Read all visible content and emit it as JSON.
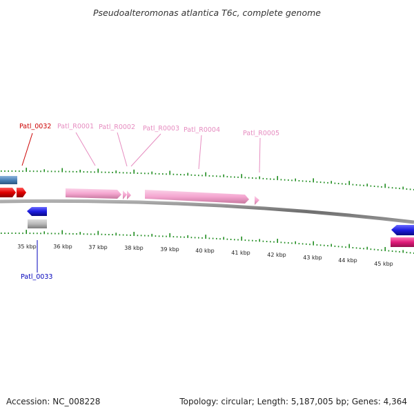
{
  "title": "Pseudoalteromonas atlantica T6c, complete genome",
  "footer": {
    "accession": "Accession: NC_008228",
    "summary": "Topology: circular; Length: 5,187,005 bp; Genes: 4,364"
  },
  "colors": {
    "backbone": "#808080",
    "tick": "#1e8c1e",
    "gene_red_label": "#cc0000",
    "gene_pink_label": "#e68cc0",
    "gene_blue_label": "#0000bb",
    "feature_red": "#e00000",
    "feature_pink": "#f4a6d0",
    "feature_steelblue": "#4a82b8",
    "feature_blue": "#1c1ce0",
    "feature_gray": "#b0b0b0",
    "feature_magenta": "#e0197a"
  },
  "axis": {
    "unit": "kbp",
    "labels": [
      "35 kbp",
      "36 kbp",
      "37 kbp",
      "38 kbp",
      "39 kbp",
      "40 kbp",
      "41 kbp",
      "42 kbp",
      "43 kbp",
      "44 kbp",
      "45 kbp"
    ]
  },
  "gene_labels": [
    {
      "name": "Patl_0032",
      "color": "red"
    },
    {
      "name": "Patl_R0001",
      "color": "pink"
    },
    {
      "name": "Patl_R0002",
      "color": "pink"
    },
    {
      "name": "Patl_R0003",
      "color": "pink"
    },
    {
      "name": "Patl_R0004",
      "color": "pink"
    },
    {
      "name": "Patl_R0005",
      "color": "pink"
    },
    {
      "name": "Patl_0033",
      "color": "blue"
    }
  ]
}
